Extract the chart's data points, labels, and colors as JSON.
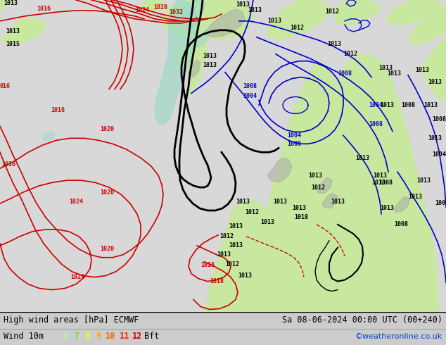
{
  "title_left": "High wind areas [hPa] ECMWF",
  "title_right": "Sa 08-06-2024 00:00 UTC (00+240)",
  "subtitle_left": "Wind 10m",
  "wind_scale_labels": [
    "6",
    "7",
    "8",
    "9",
    "10",
    "11",
    "12"
  ],
  "wind_scale_colors": [
    "#aaffaa",
    "#88dd00",
    "#ffff00",
    "#ffaa00",
    "#ff6600",
    "#ff2200",
    "#cc0000"
  ],
  "wind_scale_suffix": "Bft",
  "copyright": "©weatheronline.co.uk",
  "ocean_color": "#d8d8d8",
  "land_color": "#c8e8a0",
  "gray_terrain": "#a8a8a8",
  "teal_wind": "#a0d8c8",
  "title_bg": "#cccccc",
  "fig_width": 6.34,
  "fig_height": 4.9,
  "dpi": 100
}
